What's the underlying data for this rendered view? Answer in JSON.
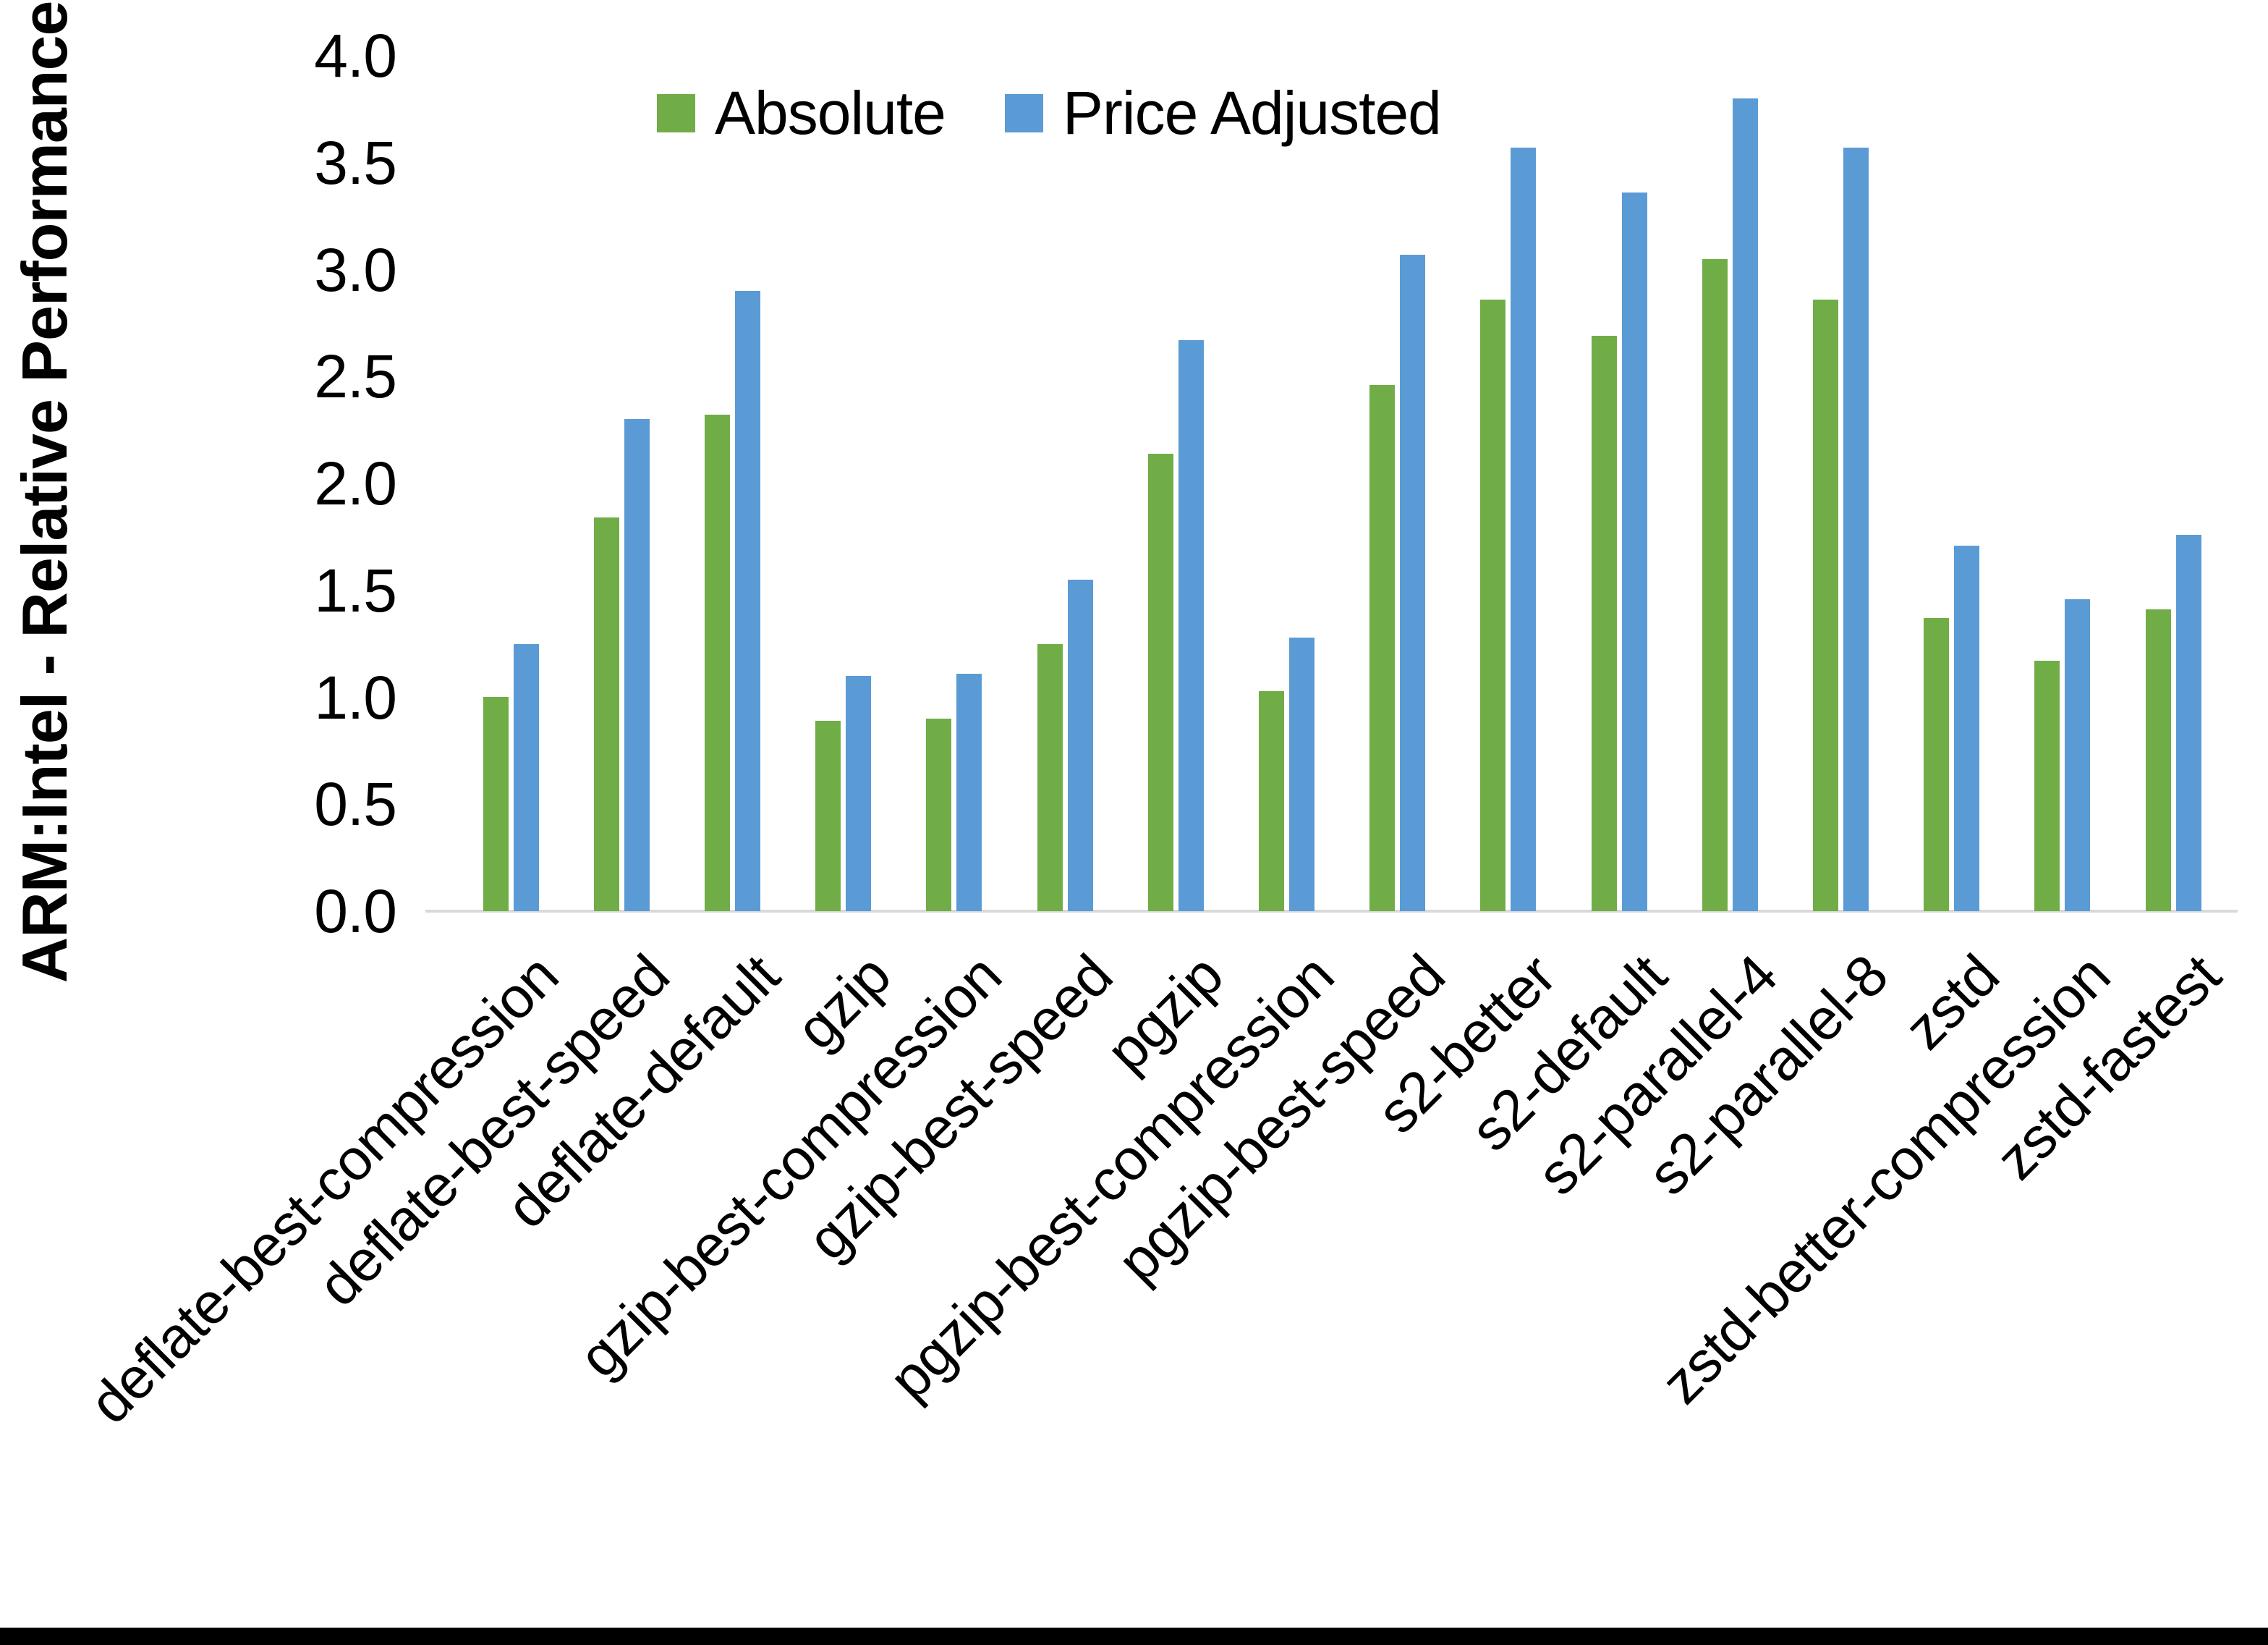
{
  "chart_data": {
    "type": "bar",
    "title": "",
    "xlabel": "",
    "ylabel": "ARM:Intel - Relative Performance",
    "categories": [
      "deflate-best-compression",
      "deflate-best-speed",
      "deflate-default",
      "gzip",
      "gzip-best-compression",
      "gzip-best-speed",
      "pgzip",
      "pgzip-best-compression",
      "pgzip-best-speed",
      "s2-better",
      "s2-default",
      "s2-parallel-4",
      "s2-parallel-8",
      "zstd",
      "zstd-better-compression",
      "zstd-fastest"
    ],
    "series": [
      {
        "name": "Absolute",
        "color": "#70AD47",
        "values": [
          1.0,
          1.84,
          2.32,
          0.89,
          0.9,
          1.25,
          2.14,
          1.03,
          2.46,
          2.86,
          2.69,
          3.05,
          2.86,
          1.37,
          1.17,
          1.41
        ]
      },
      {
        "name": "Price Adjusted",
        "color": "#5B9BD5",
        "values": [
          1.25,
          2.3,
          2.9,
          1.1,
          1.11,
          1.55,
          2.67,
          1.28,
          3.07,
          3.57,
          3.36,
          3.8,
          3.57,
          1.71,
          1.46,
          1.76
        ]
      }
    ],
    "ylim": [
      0.0,
      4.0
    ],
    "ytick_labels": [
      "0.0",
      "0.5",
      "1.0",
      "1.5",
      "2.0",
      "2.5",
      "3.0",
      "3.5",
      "4.0"
    ],
    "grid": false,
    "legend_position": "top-center",
    "colors": {
      "absolute_green": "#70AD47",
      "price_adjusted_blue": "#5B9BD5",
      "axis_line": "#D9D9D9",
      "text": "#000000",
      "background": "#FFFFFF",
      "bottom_bar": "#000000"
    }
  }
}
